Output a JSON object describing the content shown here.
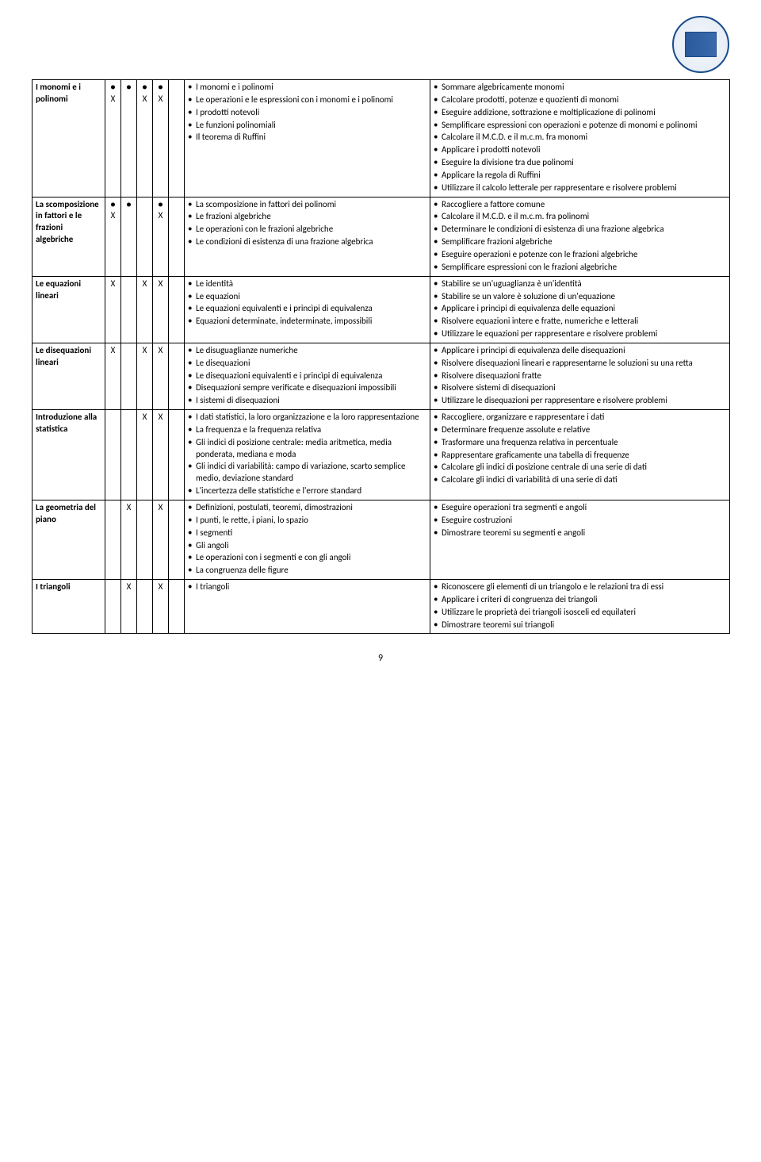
{
  "page_number": "9",
  "logo": {
    "outer_color": "#1a4b8c",
    "inner_color": "#2a5a9c"
  },
  "rows": [
    {
      "topic": "I monomi e i polinomi",
      "marks": [
        "● X",
        "●",
        "● X",
        "● X"
      ],
      "bullet_mark": true,
      "conoscenze": [
        "I monomi e i polinomi",
        "Le operazioni e le espressioni con i monomi e i polinomi",
        "I prodotti notevoli",
        "Le funzioni polinomiali",
        "Il teorema di Ruffini"
      ],
      "abilita": [
        "Sommare algebricamente monomi",
        "Calcolare prodotti, potenze e quozienti di monomi",
        "Eseguire addizione, sottrazione e moltiplicazione di polinomi",
        "Semplificare espressioni con operazioni e potenze di monomi e polinomi",
        "Calcolare il M.C.D. e il m.c.m. fra monomi",
        "Applicare i prodotti notevoli",
        "Eseguire la divisione tra due polinomi",
        "Applicare la regola di Ruffini",
        "Utilizzare il calcolo letterale per rappresentare e risolvere problemi"
      ]
    },
    {
      "topic": "La scomposizione in fattori e le frazioni algebriche",
      "marks": [
        "● X",
        "●",
        "",
        "● X"
      ],
      "bullet_mark": true,
      "conoscenze": [
        "La scomposizione in fattori dei polinomi",
        "Le frazioni algebriche",
        "Le operazioni con le frazioni algebriche",
        "Le condizioni di esistenza di una frazione algebrica"
      ],
      "abilita": [
        "Raccogliere a fattore comune",
        "Calcolare il M.C.D. e il m.c.m. fra polinomi",
        "Determinare le condizioni di esistenza di una frazione algebrica",
        "Semplificare frazioni algebriche",
        "Eseguire operazioni e potenze con le frazioni algebriche",
        "Semplificare espressioni con le frazioni algebriche"
      ]
    },
    {
      "topic": "Le equazioni lineari",
      "marks": [
        "X",
        "",
        "X",
        "X"
      ],
      "conoscenze": [
        "Le identità",
        "Le equazioni",
        "Le equazioni equivalenti e i princìpi di equivalenza",
        "Equazioni determinate, indeterminate, impossibili"
      ],
      "abilita": [
        "Stabilire se un'uguaglianza è un'identità",
        "Stabilire se un valore è soluzione di un'equazione",
        "Applicare i princìpi di equivalenza delle equazioni",
        "Risolvere equazioni intere e fratte, numeriche e letterali",
        "Utilizzare le equazioni per rappresentare e risolvere problemi"
      ]
    },
    {
      "topic": "Le disequazioni lineari",
      "marks": [
        "X",
        "",
        "X",
        "X"
      ],
      "conoscenze": [
        "Le disuguaglianze numeriche",
        "Le disequazioni",
        "Le disequazioni equivalenti e i princìpi di equivalenza",
        "Disequazioni sempre verificate e disequazioni impossibili",
        "I sistemi di disequazioni"
      ],
      "abilita": [
        "Applicare i princìpi di equivalenza delle disequazioni",
        "Risolvere disequazioni lineari e rappresentarne le soluzioni su una retta",
        "Risolvere disequazioni fratte",
        "Risolvere sistemi di disequazioni",
        "Utilizzare le disequazioni per rappresentare e risolvere problemi"
      ]
    },
    {
      "topic": "Introduzione alla statistica",
      "marks": [
        "",
        "",
        "X",
        "X"
      ],
      "conoscenze": [
        "I dati statistici, la loro organizzazione e la loro rappresentazione",
        "La frequenza e la frequenza relativa",
        "Gli indici di posizione centrale: media aritmetica, media ponderata, mediana e moda",
        "Gli indici di variabilità: campo di variazione, scarto semplice medio, deviazione standard",
        "L'incertezza delle statistiche e l'errore standard"
      ],
      "abilita": [
        "Raccogliere, organizzare e rappresentare i dati",
        "Determinare frequenze assolute e relative",
        "Trasformare una frequenza relativa in percentuale",
        "Rappresentare graficamente una tabella di frequenze",
        "Calcolare gli indici di posizione centrale di una serie di dati",
        "Calcolare gli indici di variabilità di una serie di dati"
      ]
    },
    {
      "topic": "La geometria del piano",
      "marks": [
        "",
        "X",
        "",
        "X"
      ],
      "conoscenze": [
        "Definizioni, postulati, teoremi, dimostrazioni",
        "I punti, le rette, i piani, lo spazio",
        "I segmenti",
        "Gli angoli",
        "Le operazioni con i segmenti e con gli angoli",
        "La congruenza delle figure"
      ],
      "abilita": [
        "Eseguire operazioni tra segmenti e angoli",
        "Eseguire costruzioni",
        "Dimostrare teoremi su segmenti e angoli"
      ]
    },
    {
      "topic": "I triangoli",
      "marks": [
        "",
        "X",
        "",
        "X"
      ],
      "conoscenze": [
        "I triangoli"
      ],
      "abilita": [
        "Riconoscere gli elementi di un triangolo e le relazioni tra di essi",
        "Applicare i criteri di congruenza dei triangoli",
        "Utilizzare le proprietà dei triangoli isosceli ed equilateri",
        "Dimostrare teoremi sui triangoli"
      ]
    }
  ]
}
